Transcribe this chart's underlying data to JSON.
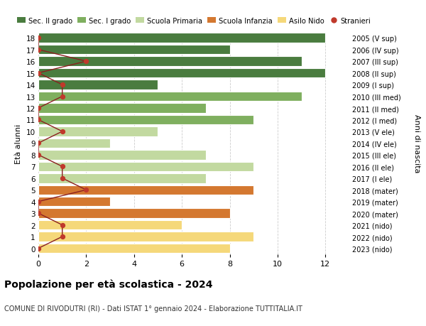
{
  "ages": [
    18,
    17,
    16,
    15,
    14,
    13,
    12,
    11,
    10,
    9,
    8,
    7,
    6,
    5,
    4,
    3,
    2,
    1,
    0
  ],
  "right_labels": [
    "2005 (V sup)",
    "2006 (IV sup)",
    "2007 (III sup)",
    "2008 (II sup)",
    "2009 (I sup)",
    "2010 (III med)",
    "2011 (II med)",
    "2012 (I med)",
    "2013 (V ele)",
    "2014 (IV ele)",
    "2015 (III ele)",
    "2016 (II ele)",
    "2017 (I ele)",
    "2018 (mater)",
    "2019 (mater)",
    "2020 (mater)",
    "2021 (nido)",
    "2022 (nido)",
    "2023 (nido)"
  ],
  "bar_values": [
    12,
    8,
    11,
    12,
    5,
    11,
    7,
    9,
    5,
    3,
    7,
    9,
    7,
    9,
    3,
    8,
    6,
    9,
    8
  ],
  "bar_colors": [
    "#4a7c3f",
    "#4a7c3f",
    "#4a7c3f",
    "#4a7c3f",
    "#4a7c3f",
    "#7faf5f",
    "#7faf5f",
    "#7faf5f",
    "#c2d9a0",
    "#c2d9a0",
    "#c2d9a0",
    "#c2d9a0",
    "#c2d9a0",
    "#d47830",
    "#d47830",
    "#d47830",
    "#f5d87a",
    "#f5d87a",
    "#f5d87a"
  ],
  "stranieri_values": [
    0,
    0,
    2,
    0,
    1,
    1,
    0,
    0,
    1,
    0,
    0,
    1,
    1,
    2,
    0,
    0,
    1,
    1,
    0
  ],
  "legend_labels": [
    "Sec. II grado",
    "Sec. I grado",
    "Scuola Primaria",
    "Scuola Infanzia",
    "Asilo Nido",
    "Stranieri"
  ],
  "legend_colors": [
    "#4a7c3f",
    "#7faf5f",
    "#c2d9a0",
    "#d47830",
    "#f5d87a",
    "#c0392b"
  ],
  "title": "Popolazione per età scolastica - 2024",
  "subtitle": "COMUNE DI RIVODUTRI (RI) - Dati ISTAT 1° gennaio 2024 - Elaborazione TUTTITALIA.IT",
  "ylabel_left": "Età alunni",
  "ylabel_right": "Anni di nascita",
  "xlim": [
    0,
    13
  ],
  "ylim": [
    -0.5,
    18.5
  ],
  "xticks": [
    0,
    2,
    4,
    6,
    8,
    10,
    12
  ],
  "stranieri_color": "#c0392b",
  "stranieri_line_color": "#8b2020",
  "bg_color": "#ffffff",
  "bar_edge_color": "#ffffff",
  "grid_color": "#cccccc",
  "bar_height": 0.82
}
